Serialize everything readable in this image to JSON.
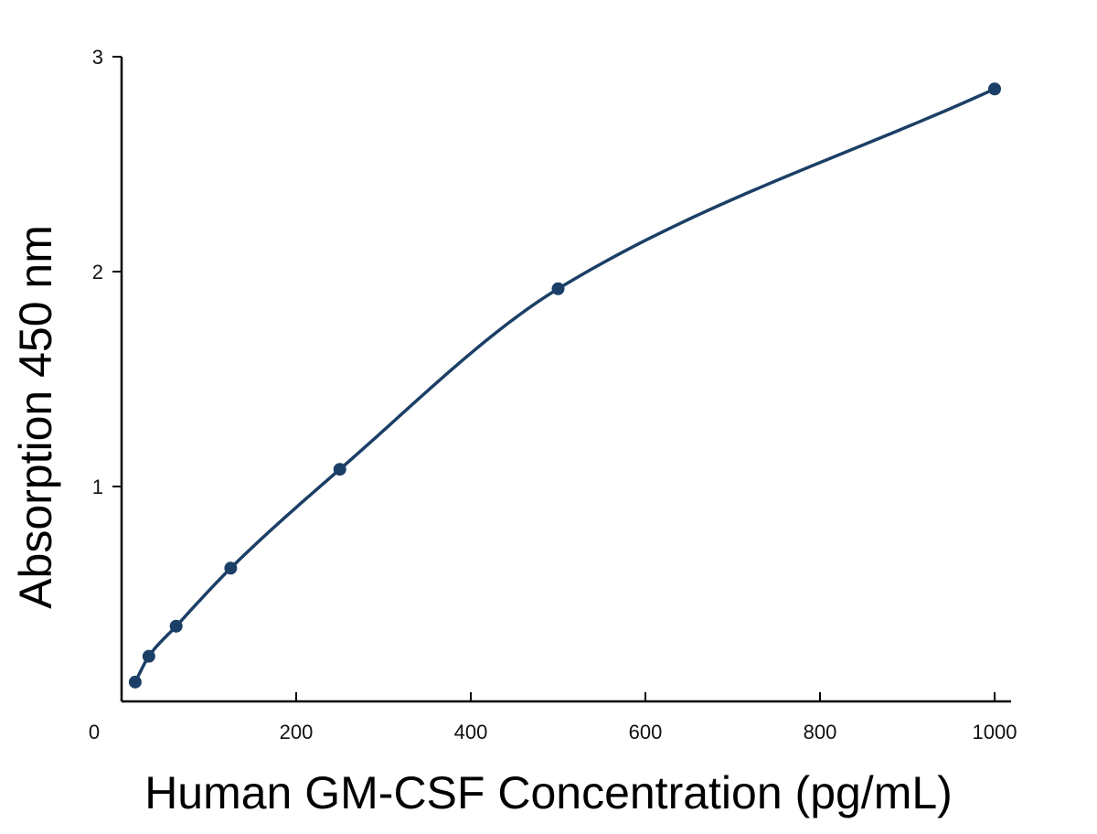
{
  "chart_data": {
    "type": "scatter",
    "title": "",
    "xlabel": "Human GM-CSF Concentration (pg/mL)",
    "ylabel": "Absorption 450 nm",
    "xlim": [
      0,
      1000
    ],
    "ylim": [
      0,
      3
    ],
    "x_ticks": [
      0,
      200,
      400,
      600,
      800,
      1000
    ],
    "y_ticks": [
      1,
      2,
      3
    ],
    "grid": false,
    "series": [
      {
        "x": [
          15.6,
          31.25,
          62.5,
          125,
          250,
          500,
          1000
        ],
        "y": [
          0.09,
          0.21,
          0.35,
          0.62,
          1.08,
          1.92,
          2.85
        ],
        "fit_curve": true
      }
    ],
    "colors": {
      "series": "#1b3f66",
      "axis": "#000000"
    }
  }
}
